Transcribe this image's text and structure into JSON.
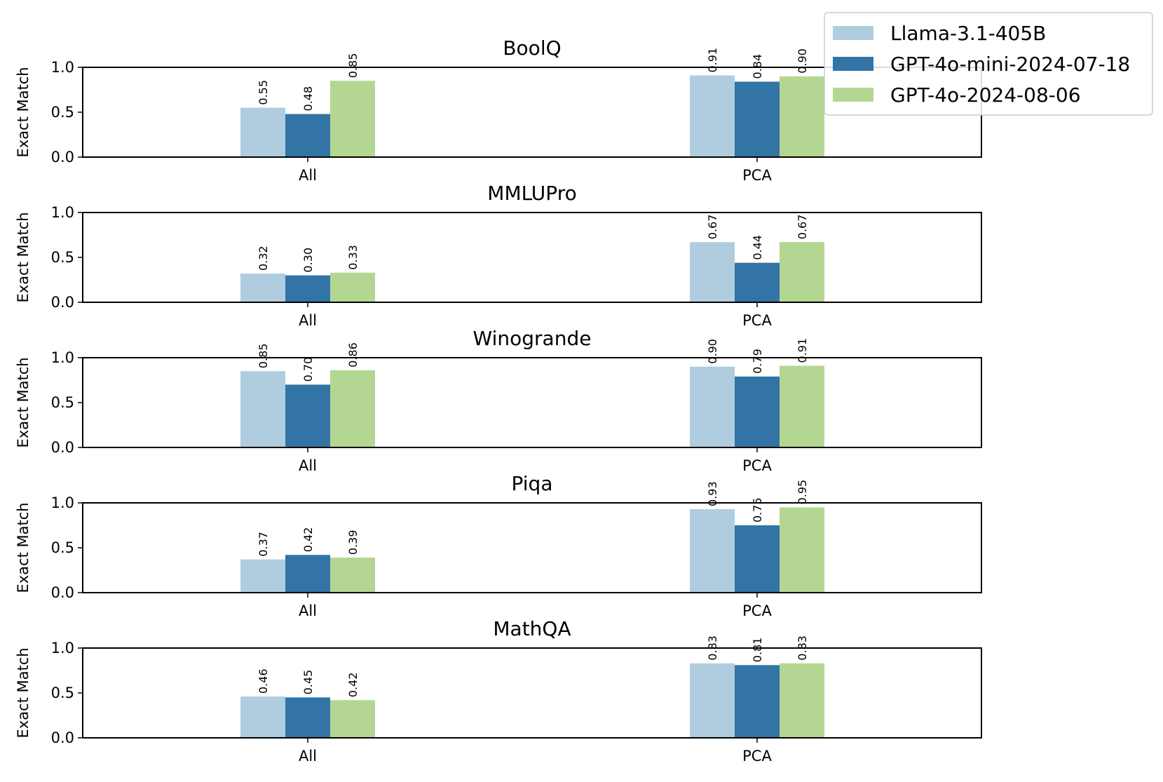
{
  "chart_data": {
    "type": "bar",
    "ylabel": "Exact Match",
    "ylim": [
      0,
      1.0
    ],
    "yticks": [
      "0.0",
      "0.5",
      "1.0"
    ],
    "categories": [
      "All",
      "PCA"
    ],
    "legend": {
      "placement": "top-right",
      "entries": [
        "Llama-3.1-405B",
        "GPT-4o-mini-2024-07-18",
        "GPT-4o-2024-08-06"
      ]
    },
    "colors": [
      "#b0cde0",
      "#3274a5",
      "#b4d693"
    ],
    "panels": [
      {
        "title": "BoolQ",
        "series": [
          {
            "name": "Llama-3.1-405B",
            "values": [
              0.55,
              0.91
            ],
            "labels": [
              "0.55",
              "0.91"
            ]
          },
          {
            "name": "GPT-4o-mini-2024-07-18",
            "values": [
              0.48,
              0.84
            ],
            "labels": [
              "0.48",
              "0.84"
            ]
          },
          {
            "name": "GPT-4o-2024-08-06",
            "values": [
              0.85,
              0.9
            ],
            "labels": [
              "0.85",
              "0.90"
            ]
          }
        ]
      },
      {
        "title": "MMLUPro",
        "series": [
          {
            "name": "Llama-3.1-405B",
            "values": [
              0.32,
              0.67
            ],
            "labels": [
              "0.32",
              "0.67"
            ]
          },
          {
            "name": "GPT-4o-mini-2024-07-18",
            "values": [
              0.3,
              0.44
            ],
            "labels": [
              "0.30",
              "0.44"
            ]
          },
          {
            "name": "GPT-4o-2024-08-06",
            "values": [
              0.33,
              0.67
            ],
            "labels": [
              "0.33",
              "0.67"
            ]
          }
        ]
      },
      {
        "title": "Winogrande",
        "series": [
          {
            "name": "Llama-3.1-405B",
            "values": [
              0.85,
              0.9
            ],
            "labels": [
              "0.85",
              "0.90"
            ]
          },
          {
            "name": "GPT-4o-mini-2024-07-18",
            "values": [
              0.7,
              0.79
            ],
            "labels": [
              "0.70",
              "0.79"
            ]
          },
          {
            "name": "GPT-4o-2024-08-06",
            "values": [
              0.86,
              0.91
            ],
            "labels": [
              "0.86",
              "0.91"
            ]
          }
        ]
      },
      {
        "title": "Piqa",
        "series": [
          {
            "name": "Llama-3.1-405B",
            "values": [
              0.37,
              0.93
            ],
            "labels": [
              "0.37",
              "0.93"
            ]
          },
          {
            "name": "GPT-4o-mini-2024-07-18",
            "values": [
              0.42,
              0.75
            ],
            "labels": [
              "0.42",
              "0.75"
            ]
          },
          {
            "name": "GPT-4o-2024-08-06",
            "values": [
              0.39,
              0.95
            ],
            "labels": [
              "0.39",
              "0.95"
            ]
          }
        ]
      },
      {
        "title": "MathQA",
        "series": [
          {
            "name": "Llama-3.1-405B",
            "values": [
              0.46,
              0.83
            ],
            "labels": [
              "0.46",
              "0.83"
            ]
          },
          {
            "name": "GPT-4o-mini-2024-07-18",
            "values": [
              0.45,
              0.81
            ],
            "labels": [
              "0.45",
              "0.81"
            ]
          },
          {
            "name": "GPT-4o-2024-08-06",
            "values": [
              0.42,
              0.83
            ],
            "labels": [
              "0.42",
              "0.83"
            ]
          }
        ]
      }
    ]
  }
}
